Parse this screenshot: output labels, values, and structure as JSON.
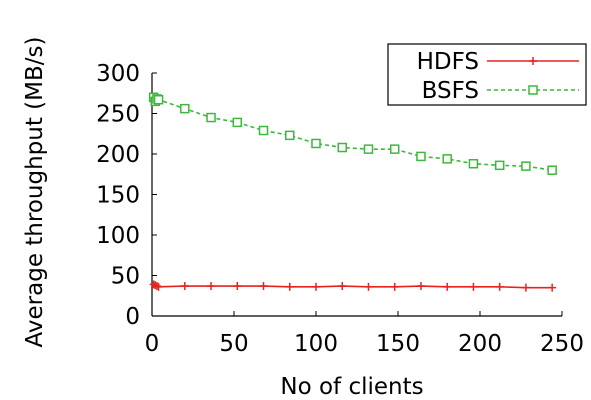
{
  "chart_data": {
    "type": "line",
    "title": "",
    "xlabel": "No of clients",
    "ylabel": "Average throughput (MB/s)",
    "xlim": [
      0,
      250
    ],
    "ylim": [
      0,
      300
    ],
    "xticks": [
      "0",
      "50",
      "100",
      "150",
      "200",
      "250"
    ],
    "yticks": [
      "0",
      "50",
      "100",
      "150",
      "200",
      "250",
      "300"
    ],
    "grid": false,
    "legend_position": "top-right",
    "series": [
      {
        "name": "HDFS",
        "color": "#e8231e",
        "marker": "plus",
        "line": "solid",
        "x": [
          1,
          2,
          3,
          4,
          20,
          36,
          52,
          68,
          84,
          100,
          116,
          132,
          148,
          164,
          180,
          196,
          212,
          228,
          244
        ],
        "y": [
          39,
          38,
          37,
          36,
          37,
          37,
          37,
          37,
          36,
          36,
          37,
          36,
          36,
          37,
          36,
          36,
          36,
          35,
          35
        ]
      },
      {
        "name": "BSFS",
        "color": "#3cb83c",
        "marker": "square",
        "line": "dashed",
        "x": [
          1,
          2,
          3,
          4,
          20,
          36,
          52,
          68,
          84,
          100,
          116,
          132,
          148,
          164,
          180,
          196,
          212,
          228,
          244
        ],
        "y": [
          270,
          265,
          268,
          267,
          256,
          245,
          239,
          229,
          223,
          213,
          208,
          206,
          206,
          197,
          194,
          188,
          186,
          185,
          180
        ]
      }
    ]
  }
}
